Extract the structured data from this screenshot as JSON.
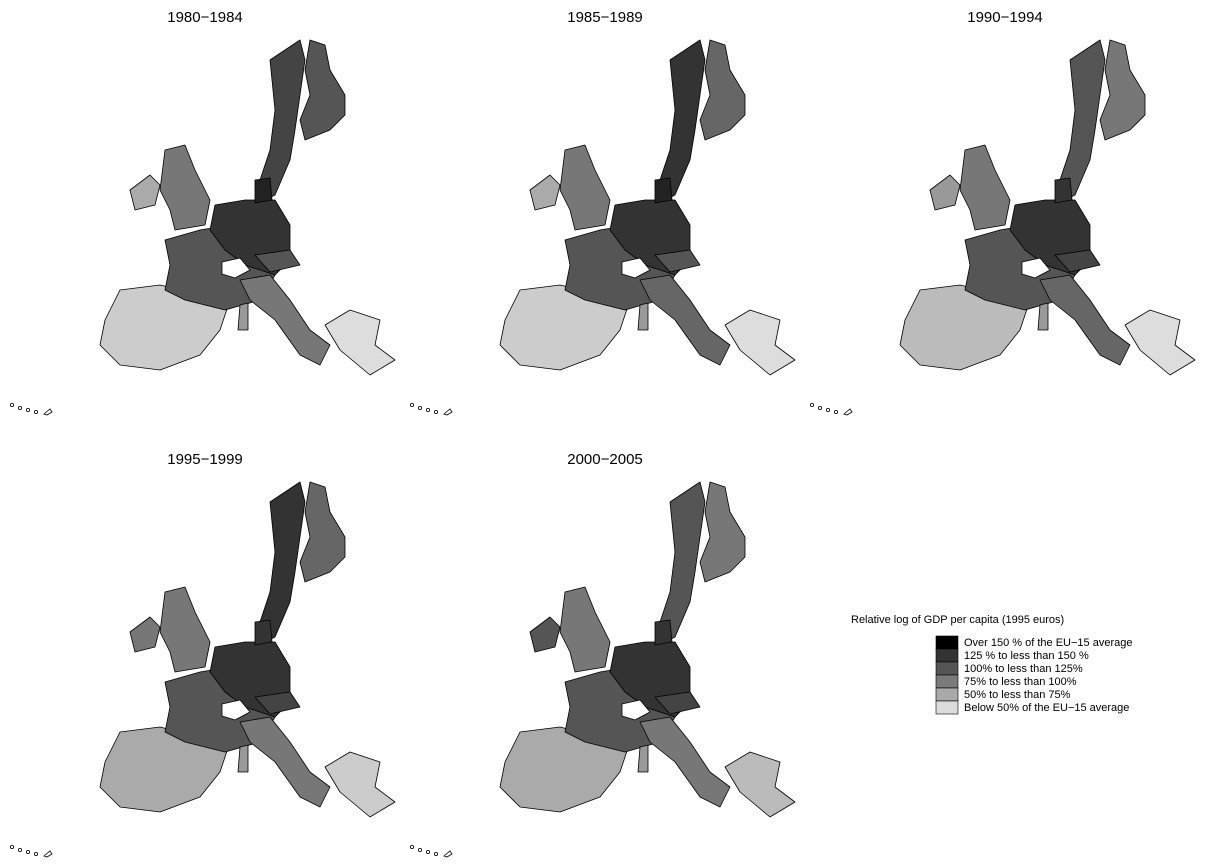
{
  "panels": [
    {
      "title": "1980−1984"
    },
    {
      "title": "1985−1989"
    },
    {
      "title": "1990−1994"
    },
    {
      "title": "1995−1999"
    },
    {
      "title": "2000−2005"
    }
  ],
  "legend": {
    "title": "Relative log of GDP per capita (1995 euros)",
    "items": [
      {
        "label": "Over 150 % of the EU−15 average",
        "color": "#000000"
      },
      {
        "label": "125 % to less than 150 %",
        "color": "#333333"
      },
      {
        "label": "100% to less than 125%",
        "color": "#555555"
      },
      {
        "label": "75% to less than 100%",
        "color": "#7a7a7a"
      },
      {
        "label": "50% to less than 75%",
        "color": "#a9a9a9"
      },
      {
        "label": "Below 50% of the EU−15 average",
        "color": "#dcdcdc"
      }
    ]
  }
}
